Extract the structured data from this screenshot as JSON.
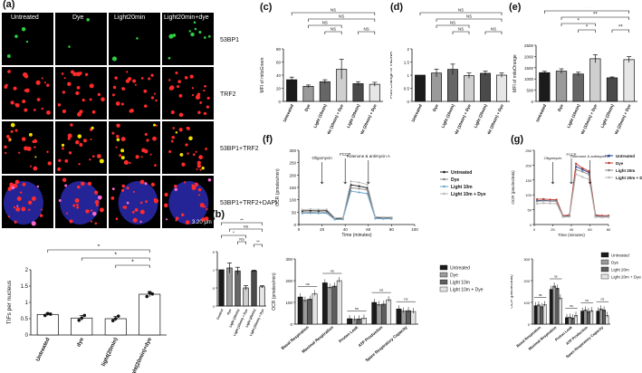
{
  "panels": {
    "a": "(a)",
    "b": "(b)",
    "c": "(c)",
    "d": "(d)",
    "e": "(e)",
    "f": "(f)",
    "g": "(g)"
  },
  "microscopy": {
    "columns": [
      "Untreated",
      "Dye",
      "Light20min",
      "Light20min+dye"
    ],
    "rows": [
      "53BP1",
      "TRF2",
      "53BP1+TRF2",
      "53BP1+TRF2+DAPI"
    ],
    "scale_bar": "3.20 μm"
  },
  "sig": {
    "star1": "*",
    "star2": "**",
    "ns": "NS",
    "ns_lower": "ns"
  },
  "chart_data": [
    {
      "id": "a_tifs",
      "type": "bar",
      "categories": [
        "Untreated",
        "dye",
        "light(20min)",
        "light(20min)+dye"
      ],
      "values": [
        0.63,
        0.52,
        0.5,
        1.25
      ],
      "errors": [
        0.04,
        0.08,
        0.07,
        0.08
      ],
      "ylabel": "TIFs per nucleus",
      "ylim": [
        0,
        2
      ],
      "yticks": [
        0,
        0.5,
        1.0,
        1.5,
        2.0
      ],
      "colors": [
        "#ffffff",
        "#ffffff",
        "#ffffff",
        "#ffffff"
      ]
    },
    {
      "id": "b_telodna",
      "type": "bar",
      "categories": [
        "Control",
        "Dye",
        "Light (10min)",
        "Light (10min) + Dye",
        "Light (20min)",
        "Light (20min) + Dye"
      ],
      "values": [
        1.0,
        1.05,
        0.97,
        0.5,
        0.97,
        0.53
      ],
      "errors": [
        0.0,
        0.14,
        0.1,
        0.06,
        0.02,
        0.03
      ],
      "ylabel": "Fold Change of teloDNA",
      "ylim": [
        0,
        1.5
      ],
      "yticks": [
        0.0,
        0.5,
        1.0,
        1.5
      ],
      "colors": [
        "#1b1b1b",
        "#9a9a9a",
        "#666666",
        "#cfcfcf",
        "#4a4a4a",
        "#e6e6e6"
      ]
    },
    {
      "id": "c_mitogreen",
      "type": "bar",
      "categories": [
        "Untreated",
        "Dye",
        "Light (10min)",
        "Light (10min) + Dye",
        "Light (20min)",
        "Light (20min) + Dye"
      ],
      "values": [
        33,
        23,
        30,
        49,
        27,
        26
      ],
      "errors": [
        4,
        2,
        3,
        15,
        3,
        3
      ],
      "ylabel": "MFI of mitoGreen",
      "ylim": [
        0,
        80
      ],
      "yticks": [
        0,
        20,
        40,
        60,
        80
      ],
      "colors": [
        "#1b1b1b",
        "#9a9a9a",
        "#666666",
        "#cfcfcf",
        "#4a4a4a",
        "#e6e6e6"
      ]
    },
    {
      "id": "d_mtdna",
      "type": "bar",
      "categories": [
        "Untreated",
        "Dye",
        "Light (10min)",
        "Light (10min) + Dye",
        "Light (20min)",
        "Light (20min) + Dye"
      ],
      "values": [
        1.0,
        1.08,
        1.22,
        0.98,
        1.07,
        1.0
      ],
      "errors": [
        0.0,
        0.15,
        0.2,
        0.1,
        0.08,
        0.08
      ],
      "ylabel": "Fold Change of mtDNA",
      "ylim": [
        0,
        2
      ],
      "yticks": [
        0.0,
        0.5,
        1.0,
        1.5,
        2.0
      ],
      "colors": [
        "#1b1b1b",
        "#9a9a9a",
        "#666666",
        "#cfcfcf",
        "#4a4a4a",
        "#e6e6e6"
      ]
    },
    {
      "id": "e_mitoorange",
      "type": "bar",
      "categories": [
        "Untreated",
        "Dye",
        "Light (10min)",
        "Light (10min) + Dye",
        "Light (20min)",
        "Light (20min) + Dye"
      ],
      "values": [
        1280,
        1350,
        1220,
        1900,
        1050,
        1860
      ],
      "errors": [
        60,
        100,
        80,
        180,
        40,
        130
      ],
      "ylabel": "MFI of mitoOrange",
      "ylim": [
        0,
        2500
      ],
      "yticks": [
        0,
        500,
        1000,
        1500,
        2000,
        2500
      ],
      "colors": [
        "#1b1b1b",
        "#9a9a9a",
        "#666666",
        "#cfcfcf",
        "#4a4a4a",
        "#e6e6e6"
      ]
    },
    {
      "id": "f_ocr_time",
      "type": "line",
      "x": [
        3,
        10,
        17,
        24,
        31,
        38,
        45,
        52,
        59,
        66,
        73,
        80
      ],
      "series": [
        {
          "name": "Untreated",
          "values": [
            55,
            56,
            55,
            56,
            25,
            26,
            160,
            155,
            148,
            30,
            28,
            28
          ]
        },
        {
          "name": "Dye",
          "values": [
            48,
            49,
            48,
            49,
            22,
            23,
            148,
            145,
            140,
            26,
            25,
            25
          ]
        },
        {
          "name": "Light 10m",
          "values": [
            45,
            46,
            45,
            46,
            20,
            21,
            135,
            130,
            125,
            24,
            23,
            23
          ]
        },
        {
          "name": "Light 10m + Dye",
          "values": [
            60,
            62,
            61,
            61,
            27,
            28,
            175,
            170,
            162,
            32,
            30,
            30
          ]
        }
      ],
      "ylabel": "OCR (pmoles/min)",
      "xlabel": "Time (minutes)",
      "ylim": [
        0,
        300
      ],
      "yticks": [
        0,
        50,
        100,
        150,
        200,
        250,
        300
      ],
      "xlim": [
        0,
        100
      ],
      "xticks": [
        0,
        20,
        40,
        60,
        80,
        100
      ],
      "annotations": [
        "Oligomycin",
        "FCCP",
        "Rotenone & antimycin A"
      ],
      "colors": [
        "#1b1b1b",
        "#888888",
        "#6aa5c9",
        "#b9b9b9"
      ]
    },
    {
      "id": "g_ocr_time",
      "type": "line",
      "x": [
        3,
        10,
        17,
        24,
        31,
        38,
        45,
        52,
        59,
        66,
        73,
        80
      ],
      "series": [
        {
          "name": "Untreated",
          "values": [
            80,
            82,
            80,
            80,
            28,
            30,
            195,
            185,
            175,
            30,
            28,
            28
          ]
        },
        {
          "name": "Dye",
          "values": [
            85,
            86,
            84,
            84,
            30,
            32,
            205,
            190,
            180,
            32,
            30,
            30
          ]
        },
        {
          "name": "Light 20m",
          "values": [
            78,
            80,
            79,
            78,
            27,
            28,
            185,
            178,
            168,
            28,
            27,
            27
          ]
        },
        {
          "name": "Light 20m + Dye",
          "values": [
            70,
            72,
            71,
            70,
            25,
            26,
            170,
            160,
            152,
            25,
            24,
            24
          ]
        }
      ],
      "ylabel": "OCR (pmoles/min)",
      "xlabel": "Time (minutes)",
      "ylim": [
        0,
        250
      ],
      "yticks": [
        0,
        50,
        100,
        150,
        200,
        250
      ],
      "xlim": [
        0,
        80
      ],
      "xticks": [
        0,
        20,
        40,
        60,
        80
      ],
      "annotations": [
        "Oligomycin",
        "FCCP",
        "Rotenone & antimycin A"
      ],
      "colors": [
        "#1f3f8f",
        "#c0392b",
        "#888888",
        "#b7b7b7"
      ]
    },
    {
      "id": "f_ocr_params",
      "type": "bar",
      "categories": [
        "Basal Respiration",
        "Maximal Respiration",
        "Proton Leak",
        "ATP Production",
        "Spare Respiratory Capacity"
      ],
      "series": [
        {
          "name": "Untreated",
          "values": [
            125,
            190,
            25,
            100,
            70
          ]
        },
        {
          "name": "Dye",
          "values": [
            110,
            170,
            22,
            90,
            60
          ]
        },
        {
          "name": "Light 10m",
          "values": [
            115,
            175,
            24,
            92,
            62
          ]
        },
        {
          "name": "Light 10m + Dye",
          "values": [
            140,
            200,
            28,
            112,
            58
          ]
        }
      ],
      "ylabel": "OCR (pmoles/min)",
      "ylim": [
        0,
        300
      ],
      "yticks": [
        0,
        100,
        200,
        300
      ],
      "colors": [
        "#1b1b1b",
        "#9a9a9a",
        "#5e5e5e",
        "#e3e3e3"
      ]
    },
    {
      "id": "g_ocr_params",
      "type": "bar",
      "categories": [
        "Basal Respiration",
        "Maximal Respiration",
        "Proton Leak",
        "ATP Production",
        "Spare Respiratory Capacity"
      ],
      "series": [
        {
          "name": "Untreated",
          "values": [
            85,
            160,
            30,
            60,
            60
          ]
        },
        {
          "name": "Dye",
          "values": [
            88,
            175,
            32,
            65,
            70
          ]
        },
        {
          "name": "Light 20m",
          "values": [
            80,
            165,
            28,
            58,
            65
          ]
        },
        {
          "name": "Light 20m + Dye",
          "values": [
            90,
            120,
            40,
            62,
            40
          ]
        }
      ],
      "ylabel": "OCR (pmoles/min)",
      "ylim": [
        0,
        300
      ],
      "yticks": [
        0,
        100,
        200,
        300
      ],
      "colors": [
        "#1b1b1b",
        "#9a9a9a",
        "#5e5e5e",
        "#e3e3e3"
      ]
    }
  ]
}
